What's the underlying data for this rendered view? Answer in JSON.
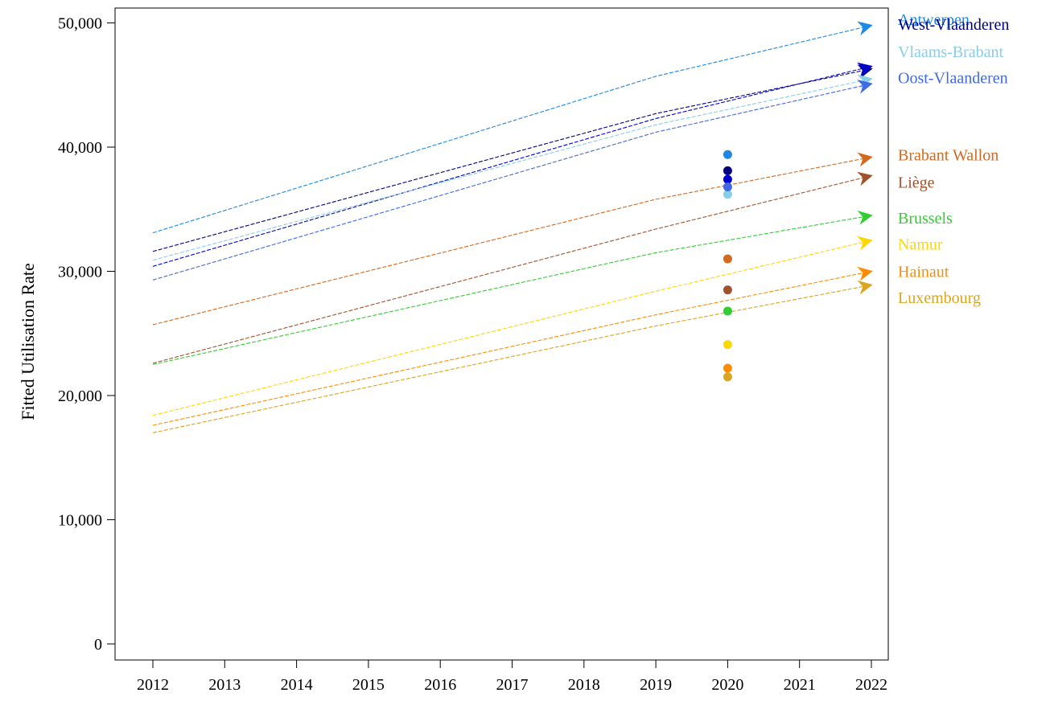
{
  "chart_data": {
    "type": "line",
    "ylabel": "Fitted Utilisation Rate",
    "xlabel": "",
    "xlim": [
      2012,
      2022
    ],
    "ylim": [
      0,
      52000
    ],
    "x_ticks": [
      "2012",
      "2013",
      "2014",
      "2015",
      "2016",
      "2017",
      "2018",
      "2019",
      "2020",
      "2021",
      "2022"
    ],
    "y_ticks": [
      {
        "value": 0,
        "label": "0"
      },
      {
        "value": 10000,
        "label": "10,000"
      },
      {
        "value": 20000,
        "label": "20,000"
      },
      {
        "value": 30000,
        "label": "30,000"
      },
      {
        "value": 40000,
        "label": "40,000"
      },
      {
        "value": 50000,
        "label": "50,000"
      }
    ],
    "grid": false,
    "legend": "labels at right end of lines",
    "x": [
      2012,
      2019,
      2022
    ],
    "series": [
      {
        "name": "Antwerpen",
        "color": "#1E88E5",
        "values": [
          33100,
          45700,
          49800
        ],
        "point_2020": 39400,
        "label_value": 50300
      },
      {
        "name": "West-Vlaanderen",
        "color": "#000080",
        "values": [
          31600,
          42700,
          46300
        ],
        "point_2020": 38100,
        "label_value": 49900
      },
      {
        "name": "",
        "color": "#0000CD",
        "values": [
          30400,
          42300,
          46500
        ],
        "point_2020": 37400,
        "label_value": null
      },
      {
        "name": "Vlaams-Brabant",
        "color": "#87CEEB",
        "values": [
          30900,
          41800,
          45500
        ],
        "point_2020": 36200,
        "label_value": 47700
      },
      {
        "name": "Oost-Vlaanderen",
        "color": "#4169E1",
        "values": [
          29300,
          41200,
          45100
        ],
        "point_2020": 36800,
        "label_value": 45600
      },
      {
        "name": "Brabant Wallon",
        "color": "#D2691E",
        "values": [
          25700,
          35800,
          39200
        ],
        "point_2020": 31000,
        "label_value": 39400
      },
      {
        "name": "Liège",
        "color": "#A0522D",
        "values": [
          22600,
          33400,
          37700
        ],
        "point_2020": 28500,
        "label_value": 37200
      },
      {
        "name": "Brussels",
        "color": "#32CD32",
        "values": [
          22500,
          31500,
          34500
        ],
        "point_2020": 26800,
        "label_value": 34300
      },
      {
        "name": "Namur",
        "color": "#FFD700",
        "values": [
          18400,
          28400,
          32500
        ],
        "point_2020": 24100,
        "label_value": 32200
      },
      {
        "name": "Hainaut",
        "color": "#FF8C00",
        "values": [
          17600,
          26500,
          30000
        ],
        "point_2020": 22200,
        "label_value": 30000
      },
      {
        "name": "Luxembourg",
        "color": "#DAA520",
        "values": [
          17000,
          25600,
          28900
        ],
        "point_2020": 21500,
        "label_value": 27900
      }
    ]
  }
}
